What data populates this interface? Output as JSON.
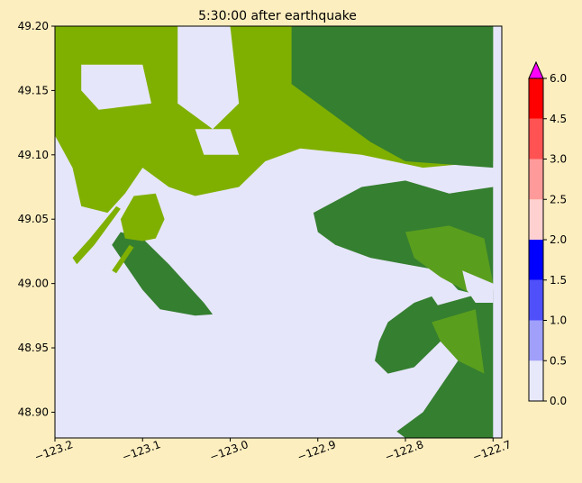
{
  "chart_data": {
    "type": "heatmap",
    "title": "5:30:00 after earthquake",
    "xlabel": "",
    "ylabel": "",
    "xlim": [
      -123.2,
      -122.69
    ],
    "ylim": [
      48.88,
      49.2
    ],
    "x_ticks": [
      -123.2,
      -123.1,
      -123.0,
      -122.9,
      -122.8,
      -122.7
    ],
    "x_tick_labels": [
      "−123.2",
      "−123.1",
      "−123.0",
      "−122.9",
      "−122.8",
      "−122.7"
    ],
    "y_ticks": [
      48.9,
      48.95,
      49.0,
      49.05,
      49.1,
      49.15,
      49.2
    ],
    "y_tick_labels": [
      "48.90",
      "48.95",
      "49.00",
      "49.05",
      "49.10",
      "49.15",
      "49.20"
    ],
    "colorbar": {
      "levels": [
        0.0,
        0.5,
        1.0,
        1.5,
        2.0,
        2.5,
        3.0,
        4.5,
        6.0
      ],
      "tick_labels": [
        "0.0",
        "0.5",
        "1.0",
        "1.5",
        "2.0",
        "2.5",
        "3.0",
        "4.5",
        "6.0"
      ],
      "colors": [
        "#e8e8fb",
        "#a0a0fb",
        "#5050fb",
        "#0000ff",
        "#ffd0d0",
        "#ff9a9a",
        "#ff5252",
        "#ff0000"
      ],
      "extend_color": "#ff00ff",
      "extend": "max"
    },
    "water_color": "#e6e6fa",
    "land_colors": {
      "lowland": "#7fb000",
      "upland": "#357f30",
      "midland": "#5a9e1e"
    },
    "grid": false,
    "legend": "colorbar right",
    "land_regions": [
      {
        "name": "north-shore-lowland",
        "color": "lowland",
        "polygon": [
          [
            -123.2,
            49.2
          ],
          [
            -122.7,
            49.2
          ],
          [
            -122.7,
            49.095
          ],
          [
            -122.78,
            49.09
          ],
          [
            -122.85,
            49.1
          ],
          [
            -122.92,
            49.105
          ],
          [
            -122.96,
            49.095
          ],
          [
            -122.99,
            49.075
          ],
          [
            -123.04,
            49.068
          ],
          [
            -123.07,
            49.075
          ],
          [
            -123.1,
            49.09
          ],
          [
            -123.12,
            49.07
          ],
          [
            -123.14,
            49.055
          ],
          [
            -123.17,
            49.06
          ],
          [
            -123.18,
            49.09
          ],
          [
            -123.2,
            49.115
          ]
        ]
      },
      {
        "name": "north-shore-mountains",
        "color": "upland",
        "polygon": [
          [
            -122.93,
            49.2
          ],
          [
            -122.7,
            49.2
          ],
          [
            -122.7,
            49.09
          ],
          [
            -122.8,
            49.095
          ],
          [
            -122.84,
            49.11
          ],
          [
            -122.87,
            49.125
          ],
          [
            -122.9,
            49.14
          ],
          [
            -122.93,
            49.155
          ]
        ]
      },
      {
        "name": "water-gap-1",
        "color": "water",
        "polygon": [
          [
            -123.17,
            49.17
          ],
          [
            -123.1,
            49.17
          ],
          [
            -123.09,
            49.14
          ],
          [
            -123.15,
            49.135
          ],
          [
            -123.17,
            49.15
          ]
        ]
      },
      {
        "name": "water-gap-2",
        "color": "water",
        "polygon": [
          [
            -123.06,
            49.2
          ],
          [
            -123.0,
            49.2
          ],
          [
            -122.99,
            49.14
          ],
          [
            -123.02,
            49.12
          ],
          [
            -123.06,
            49.14
          ]
        ]
      },
      {
        "name": "water-gap-3",
        "color": "water",
        "polygon": [
          [
            -123.04,
            49.12
          ],
          [
            -123.0,
            49.12
          ],
          [
            -122.99,
            49.1
          ],
          [
            -123.03,
            49.1
          ]
        ]
      },
      {
        "name": "peninsula-arm",
        "color": "upland",
        "polygon": [
          [
            -123.125,
            49.04
          ],
          [
            -123.1,
            49.035
          ],
          [
            -123.07,
            49.015
          ],
          [
            -123.03,
            48.985
          ],
          [
            -123.02,
            48.976
          ],
          [
            -123.04,
            48.975
          ],
          [
            -123.08,
            48.98
          ],
          [
            -123.1,
            48.995
          ],
          [
            -123.12,
            49.015
          ],
          [
            -123.135,
            49.03
          ]
        ]
      },
      {
        "name": "peninsula-neck",
        "color": "lowland",
        "polygon": [
          [
            -123.11,
            49.068
          ],
          [
            -123.085,
            49.07
          ],
          [
            -123.075,
            49.05
          ],
          [
            -123.085,
            49.035
          ],
          [
            -123.1,
            49.033
          ],
          [
            -123.12,
            49.035
          ],
          [
            -123.125,
            49.05
          ]
        ]
      },
      {
        "name": "spit-west",
        "color": "lowland",
        "polygon": [
          [
            -123.18,
            49.02
          ],
          [
            -123.16,
            49.035
          ],
          [
            -123.13,
            49.06
          ],
          [
            -123.125,
            49.058
          ],
          [
            -123.155,
            49.03
          ],
          [
            -123.175,
            49.015
          ]
        ]
      },
      {
        "name": "spit-west-2",
        "color": "lowland",
        "polygon": [
          [
            -123.135,
            49.01
          ],
          [
            -123.115,
            49.03
          ],
          [
            -123.11,
            49.028
          ],
          [
            -123.13,
            49.008
          ]
        ]
      },
      {
        "name": "east-upland",
        "color": "upland",
        "polygon": [
          [
            -122.905,
            49.055
          ],
          [
            -122.85,
            49.075
          ],
          [
            -122.8,
            49.08
          ],
          [
            -122.75,
            49.07
          ],
          [
            -122.7,
            49.075
          ],
          [
            -122.7,
            49.0
          ],
          [
            -122.71,
            48.99
          ],
          [
            -122.74,
            48.995
          ],
          [
            -122.76,
            49.01
          ],
          [
            -122.8,
            49.015
          ],
          [
            -122.84,
            49.02
          ],
          [
            -122.88,
            49.03
          ],
          [
            -122.9,
            49.04
          ]
        ]
      },
      {
        "name": "east-midland",
        "color": "midland",
        "polygon": [
          [
            -122.8,
            49.04
          ],
          [
            -122.75,
            49.045
          ],
          [
            -122.71,
            49.035
          ],
          [
            -122.7,
            49.0
          ],
          [
            -122.72,
            48.99
          ],
          [
            -122.76,
            49.005
          ],
          [
            -122.79,
            49.02
          ]
        ]
      },
      {
        "name": "white-rock-point",
        "color": "upland",
        "polygon": [
          [
            -122.82,
            48.97
          ],
          [
            -122.79,
            48.985
          ],
          [
            -122.77,
            48.99
          ],
          [
            -122.75,
            48.97
          ],
          [
            -122.76,
            48.955
          ],
          [
            -122.79,
            48.935
          ],
          [
            -122.82,
            48.93
          ],
          [
            -122.835,
            48.94
          ],
          [
            -122.83,
            48.955
          ]
        ]
      },
      {
        "name": "southeast-upland",
        "color": "upland",
        "polygon": [
          [
            -122.78,
            48.98
          ],
          [
            -122.7,
            48.995
          ],
          [
            -122.7,
            48.88
          ],
          [
            -122.8,
            48.88
          ],
          [
            -122.81,
            48.885
          ],
          [
            -122.78,
            48.9
          ],
          [
            -122.76,
            48.92
          ],
          [
            -122.74,
            48.94
          ],
          [
            -122.755,
            48.955
          ]
        ]
      },
      {
        "name": "southeast-midland",
        "color": "midland",
        "polygon": [
          [
            -122.77,
            48.97
          ],
          [
            -122.72,
            48.98
          ],
          [
            -122.71,
            48.93
          ],
          [
            -122.74,
            48.94
          ],
          [
            -122.76,
            48.955
          ]
        ]
      },
      {
        "name": "bay-inlet",
        "color": "water",
        "polygon": [
          [
            -122.735,
            49.01
          ],
          [
            -122.7,
            49.0
          ],
          [
            -122.7,
            48.985
          ],
          [
            -122.72,
            48.985
          ],
          [
            -122.73,
            48.995
          ]
        ]
      }
    ]
  }
}
